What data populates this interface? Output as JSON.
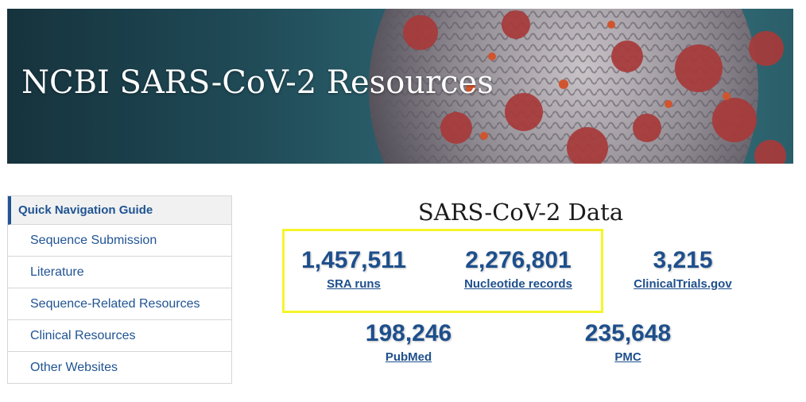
{
  "banner": {
    "title": "NCBI SARS-CoV-2 Resources"
  },
  "sidebar": {
    "header": "Quick Navigation Guide",
    "items": [
      {
        "label": "Sequence Submission"
      },
      {
        "label": "Literature"
      },
      {
        "label": "Sequence-Related Resources"
      },
      {
        "label": "Clinical Resources"
      },
      {
        "label": "Other Websites"
      }
    ]
  },
  "data_section": {
    "title": "SARS-CoV-2 Data",
    "stats": [
      {
        "value": "1,457,511",
        "label": "SRA runs"
      },
      {
        "value": "2,276,801",
        "label": "Nucleotide records"
      },
      {
        "value": "3,215",
        "label": "ClinicalTrials.gov"
      },
      {
        "value": "198,246",
        "label": "PubMed"
      },
      {
        "value": "235,648",
        "label": "PMC"
      }
    ]
  },
  "colors": {
    "link_blue": "#205493",
    "stat_blue": "#1e4f8c",
    "highlight_yellow": "#f5f52a",
    "banner_teal": "#2d6470"
  }
}
